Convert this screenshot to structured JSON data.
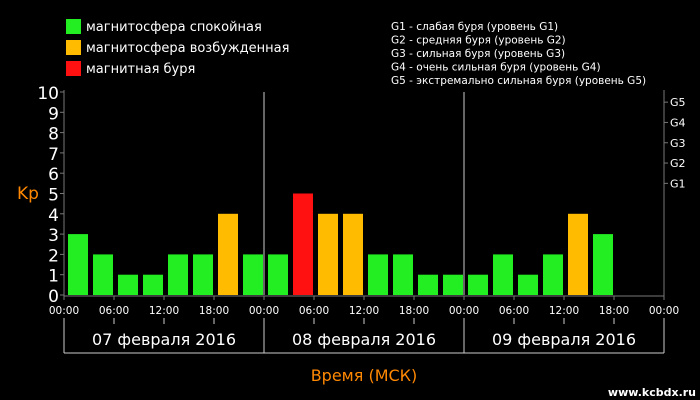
{
  "chart_data": {
    "type": "bar",
    "ylabel": "Kp",
    "xlabel": "Время (МСК)",
    "ylim": [
      0,
      10
    ],
    "y_ticks": [
      "0",
      "1",
      "2",
      "3",
      "4",
      "5",
      "6",
      "7",
      "8",
      "9",
      "10"
    ],
    "storm_ticks": [
      {
        "label": "G1",
        "kp": 5
      },
      {
        "label": "G2",
        "kp": 6
      },
      {
        "label": "G3",
        "kp": 7
      },
      {
        "label": "G4",
        "kp": 8
      },
      {
        "label": "G5",
        "kp": 9
      }
    ],
    "x_ticks": [
      "00:00",
      "06:00",
      "12:00",
      "18:00",
      "00:00",
      "06:00",
      "12:00",
      "18:00",
      "00:00",
      "06:00",
      "12:00",
      "18:00",
      "00:00"
    ],
    "days": [
      "07 февраля 2016",
      "08 февраля 2016",
      "09 февраля 2016"
    ],
    "slots": 24,
    "values": [
      3,
      2,
      1,
      1,
      2,
      2,
      4,
      2,
      2,
      5,
      4,
      4,
      2,
      2,
      1,
      1,
      1,
      2,
      1,
      2,
      4,
      3
    ],
    "legend": [
      {
        "label": "магнитосфера спокойная",
        "color": "#22ee22"
      },
      {
        "label": "магнитосфера возбужденная",
        "color": "#ffbb00"
      },
      {
        "label": "магнитная буря",
        "color": "#ff1111"
      }
    ],
    "storm_legend": [
      "G1 - слабая буря (уровень G1)",
      "G2 - средняя буря (уровень G2)",
      "G3 - сильная буря (уровень G3)",
      "G4 - очень сильная буря (уровень G4)",
      "G5 - экстремально сильная буря (уровень G5)"
    ],
    "thresholds": {
      "disturbed": 4,
      "storm": 5
    },
    "colors": {
      "quiet": "#22ee22",
      "disturbed": "#ffbb00",
      "storm": "#ff1111",
      "axis_label": "#ff8800",
      "grid": "#777777",
      "text": "#ffffff",
      "background": "#000000"
    }
  },
  "watermark": "www.kcbdx.ru"
}
